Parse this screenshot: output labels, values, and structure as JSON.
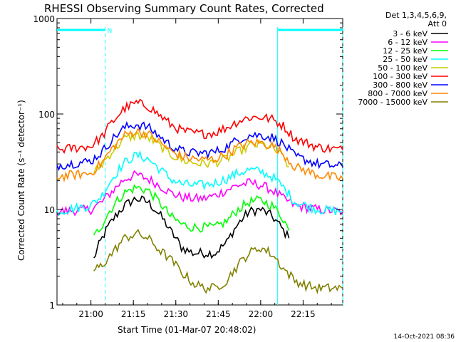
{
  "chart_data": {
    "type": "line",
    "title": "RHESSI Observing Summary Count Rates, Corrected",
    "xlabel": "Start Time (01-Mar-07 20:48:02)",
    "ylabel": "Corrected Count Rate (s⁻¹ detector⁻¹)",
    "y_scale": "log",
    "ylim": [
      1,
      1000
    ],
    "xlim": [
      "20:48",
      "22:29"
    ],
    "x_unit": "time (HH:MM)",
    "x_ticks": [
      "21:00",
      "21:15",
      "21:30",
      "21:45",
      "22:00",
      "22:15"
    ],
    "y_ticks": [
      "1",
      "10",
      "100",
      "1000"
    ],
    "legend_header": [
      "Det 1,3,4,5,6,9,",
      "Att 0"
    ],
    "legend_position": "right",
    "footer_timestamp": "14-Oct-2021 08:36",
    "annotations": [
      {
        "label": "N",
        "text_value": "N"
      }
    ],
    "night_flags": [
      {
        "start": "20:48",
        "end": "21:05",
        "label": "N"
      },
      {
        "start": "22:06",
        "end": "22:29",
        "label": ""
      }
    ],
    "saa_markers": [
      "21:05",
      "22:06",
      "22:29"
    ],
    "series": [
      {
        "name": "3 - 6 keV",
        "color": "#000000",
        "x": [
          "21:01",
          "21:04",
          "21:08",
          "21:12",
          "21:16",
          "21:20",
          "21:24",
          "21:28",
          "21:32",
          "21:36",
          "21:40",
          "21:44",
          "21:48",
          "21:52",
          "21:56",
          "22:00",
          "22:04",
          "22:08",
          "22:10"
        ],
        "y": [
          3,
          5,
          8,
          11,
          13,
          12,
          9,
          6,
          4,
          3.5,
          3.5,
          3.5,
          4.5,
          7,
          9.5,
          10,
          8.5,
          6,
          5
        ]
      },
      {
        "name": "6 - 12 keV",
        "color": "#ff00ff",
        "x": [
          "20:48",
          "21:00",
          "21:04",
          "21:08",
          "21:12",
          "21:16",
          "21:20",
          "21:24",
          "21:28",
          "21:32",
          "21:36",
          "21:40",
          "21:44",
          "21:48",
          "21:52",
          "21:56",
          "22:00",
          "22:04",
          "22:08",
          "22:12",
          "22:20",
          "22:29"
        ],
        "y": [
          9.5,
          10,
          12,
          16,
          21,
          23,
          21,
          18,
          15,
          13.5,
          13,
          13,
          14,
          16,
          18,
          19,
          18,
          16,
          13,
          11,
          10,
          9.5
        ]
      },
      {
        "name": "12 - 25 keV",
        "color": "#00ff00",
        "x": [
          "21:01",
          "21:04",
          "21:08",
          "21:12",
          "21:16",
          "21:20",
          "21:24",
          "21:28",
          "21:32",
          "21:36",
          "21:40",
          "21:44",
          "21:48",
          "21:52",
          "21:56",
          "22:00",
          "22:04",
          "22:08",
          "22:10"
        ],
        "y": [
          5,
          7,
          11,
          15,
          17,
          16,
          12,
          8.5,
          7,
          6.5,
          6.5,
          6.5,
          7.5,
          10,
          12,
          12.5,
          11,
          8,
          6
        ]
      },
      {
        "name": "25 - 50 keV",
        "color": "#00ffff",
        "x": [
          "20:48",
          "21:00",
          "21:04",
          "21:08",
          "21:12",
          "21:16",
          "21:20",
          "21:24",
          "21:28",
          "21:32",
          "21:36",
          "21:40",
          "21:44",
          "21:48",
          "21:52",
          "21:56",
          "22:00",
          "22:04",
          "22:08",
          "22:12",
          "22:20",
          "22:29"
        ],
        "y": [
          9.5,
          11,
          14,
          22,
          31,
          37,
          34,
          27,
          21,
          18.5,
          18,
          18,
          19,
          21,
          24,
          26,
          25,
          22,
          17,
          12,
          10,
          9.5
        ]
      },
      {
        "name": "50 - 100 keV",
        "color": "#cccc00",
        "x": [
          "21:01",
          "21:04",
          "21:08",
          "21:12",
          "21:16",
          "21:20",
          "21:24",
          "21:28",
          "21:32",
          "21:36",
          "21:40",
          "21:44",
          "21:48",
          "21:52",
          "21:56",
          "22:00",
          "22:04",
          "22:08",
          "22:10"
        ],
        "y": [
          24,
          30,
          42,
          55,
          60,
          57,
          47,
          38,
          33,
          31,
          30,
          31,
          34,
          40,
          46,
          48,
          44,
          35,
          28
        ]
      },
      {
        "name": "100 - 300 keV",
        "color": "#ff0000",
        "x": [
          "20:48",
          "21:00",
          "21:04",
          "21:08",
          "21:12",
          "21:16",
          "21:20",
          "21:24",
          "21:28",
          "21:32",
          "21:36",
          "21:40",
          "21:44",
          "21:48",
          "21:52",
          "21:56",
          "22:00",
          "22:04",
          "22:08",
          "22:12",
          "22:20",
          "22:29"
        ],
        "y": [
          42,
          46,
          58,
          85,
          115,
          130,
          122,
          98,
          78,
          67,
          63,
          62,
          64,
          72,
          84,
          92,
          93,
          88,
          75,
          55,
          45,
          42
        ]
      },
      {
        "name": "300 - 800 keV",
        "color": "#0000ff",
        "x": [
          "20:48",
          "21:00",
          "21:04",
          "21:08",
          "21:12",
          "21:16",
          "21:20",
          "21:24",
          "21:28",
          "21:32",
          "21:36",
          "21:40",
          "21:44",
          "21:48",
          "21:52",
          "21:56",
          "22:00",
          "22:04",
          "22:08",
          "22:12",
          "22:20",
          "22:29"
        ],
        "y": [
          29,
          32,
          40,
          56,
          72,
          78,
          73,
          59,
          47,
          41,
          39,
          39,
          40,
          45,
          54,
          60,
          60,
          57,
          48,
          36,
          30,
          28
        ]
      },
      {
        "name": "800 - 7000 keV",
        "color": "#ff8800",
        "x": [
          "20:48",
          "21:00",
          "21:04",
          "21:08",
          "21:12",
          "21:16",
          "21:20",
          "21:24",
          "21:28",
          "21:32",
          "21:36",
          "21:40",
          "21:44",
          "21:48",
          "21:52",
          "21:56",
          "22:00",
          "22:04",
          "22:08",
          "22:12",
          "22:20",
          "22:29"
        ],
        "y": [
          22,
          24,
          31,
          45,
          60,
          66,
          62,
          51,
          41,
          36,
          34,
          33,
          34,
          38,
          45,
          50,
          50,
          47,
          38,
          28,
          23,
          21
        ]
      },
      {
        "name": "7000 - 15000 keV",
        "color": "#808000",
        "x": [
          "21:01",
          "21:04",
          "21:08",
          "21:12",
          "21:16",
          "21:20",
          "21:24",
          "21:28",
          "21:32",
          "21:36",
          "21:40",
          "21:44",
          "21:48",
          "21:52",
          "21:56",
          "22:00",
          "22:04",
          "22:08",
          "22:12",
          "22:16",
          "22:20",
          "22:29"
        ],
        "y": [
          2.3,
          2.6,
          3.6,
          5,
          5.6,
          5,
          3.8,
          3,
          2.2,
          1.7,
          1.5,
          1.5,
          1.8,
          2.6,
          3.5,
          4,
          3.4,
          2.4,
          1.8,
          1.6,
          1.5,
          1.5
        ]
      }
    ]
  }
}
